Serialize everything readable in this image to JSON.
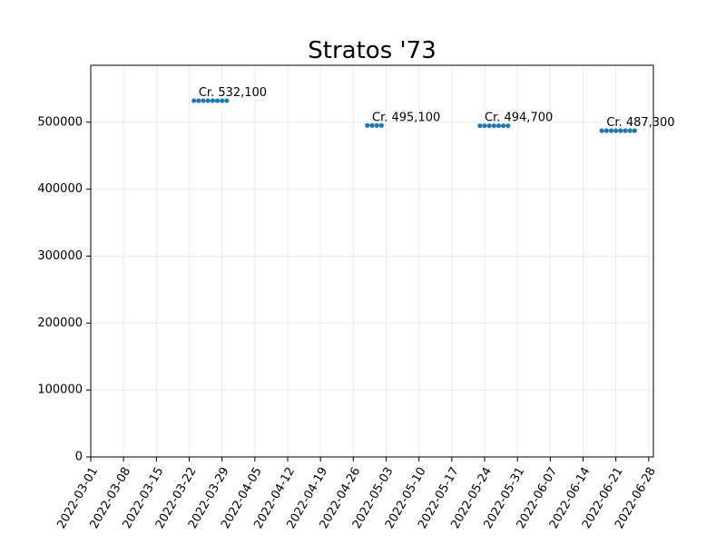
{
  "chart_data": {
    "type": "scatter",
    "title": "Stratos '73",
    "xlabel": "",
    "ylabel": "",
    "grid": true,
    "xlim": [
      "2022-03-01",
      "2022-06-29"
    ],
    "ylim": [
      0,
      585000
    ],
    "x_ticks": [
      "2022-03-01",
      "2022-03-08",
      "2022-03-15",
      "2022-03-22",
      "2022-03-29",
      "2022-04-05",
      "2022-04-12",
      "2022-04-19",
      "2022-04-26",
      "2022-05-03",
      "2022-05-10",
      "2022-05-17",
      "2022-05-24",
      "2022-05-31",
      "2022-06-07",
      "2022-06-14",
      "2022-06-21",
      "2022-06-28"
    ],
    "y_ticks": [
      0,
      100000,
      200000,
      300000,
      400000,
      500000
    ],
    "color": "#1f77b4",
    "series": [
      {
        "x": [
          "2022-03-23",
          "2022-03-24",
          "2022-03-25",
          "2022-03-26",
          "2022-03-27",
          "2022-03-28",
          "2022-03-29",
          "2022-03-30"
        ],
        "y": [
          532100,
          532100,
          532100,
          532100,
          532100,
          532100,
          532100,
          532100
        ]
      },
      {
        "x": [
          "2022-04-29",
          "2022-04-30",
          "2022-05-01",
          "2022-05-02"
        ],
        "y": [
          495100,
          495100,
          495100,
          495100
        ]
      },
      {
        "x": [
          "2022-05-23",
          "2022-05-24",
          "2022-05-25",
          "2022-05-26",
          "2022-05-27",
          "2022-05-28",
          "2022-05-29"
        ],
        "y": [
          494700,
          494700,
          494700,
          494700,
          494700,
          494700,
          494700
        ]
      },
      {
        "x": [
          "2022-06-18",
          "2022-06-19",
          "2022-06-20",
          "2022-06-21",
          "2022-06-22",
          "2022-06-23",
          "2022-06-24",
          "2022-06-25"
        ],
        "y": [
          487300,
          487300,
          487300,
          487300,
          487300,
          487300,
          487300,
          487300
        ]
      }
    ],
    "annotations": [
      {
        "text": "Cr. 532,100",
        "x": "2022-03-24",
        "y": 532100
      },
      {
        "text": "Cr. 495,100",
        "x": "2022-04-30",
        "y": 495100
      },
      {
        "text": "Cr. 494,700",
        "x": "2022-05-24",
        "y": 494700
      },
      {
        "text": "Cr. 487,300",
        "x": "2022-06-19",
        "y": 487300
      }
    ]
  }
}
